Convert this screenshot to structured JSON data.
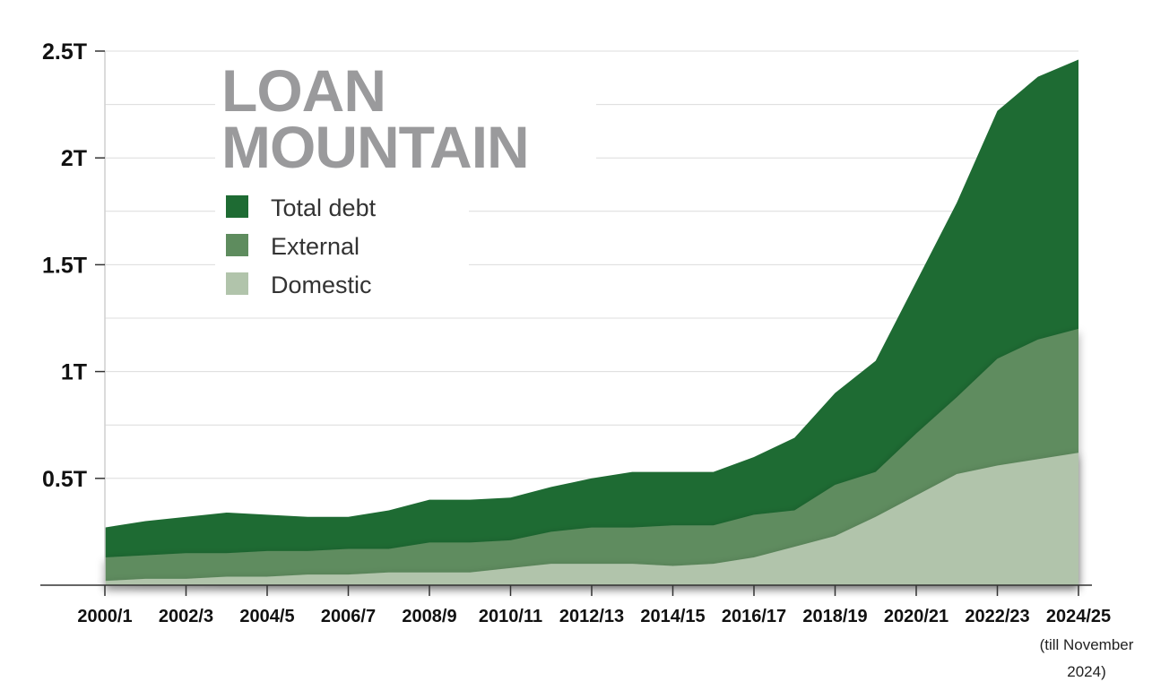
{
  "chart_data": {
    "type": "area",
    "title_lines": [
      "LOAN",
      "MOUNTAIN"
    ],
    "xlabel": "",
    "ylabel": "",
    "ylim": [
      0,
      2.5
    ],
    "y_ticks": [
      {
        "value": 0.5,
        "label": "0.5T"
      },
      {
        "value": 1,
        "label": "1T"
      },
      {
        "value": 1.5,
        "label": "1.5T"
      },
      {
        "value": 2,
        "label": "2T"
      },
      {
        "value": 2.5,
        "label": "2.5T"
      }
    ],
    "x": [
      2000,
      2001,
      2002,
      2003,
      2004,
      2005,
      2006,
      2007,
      2008,
      2009,
      2010,
      2011,
      2012,
      2013,
      2014,
      2015,
      2016,
      2017,
      2018,
      2019,
      2020,
      2021,
      2022,
      2023,
      2024
    ],
    "x_tick_labels": [
      {
        "x": 2000,
        "label": "2000/1"
      },
      {
        "x": 2002,
        "label": "2002/3"
      },
      {
        "x": 2004,
        "label": "2004/5"
      },
      {
        "x": 2006,
        "label": "2006/7"
      },
      {
        "x": 2008,
        "label": "2008/9"
      },
      {
        "x": 2010,
        "label": "2010/11"
      },
      {
        "x": 2012,
        "label": "2012/13"
      },
      {
        "x": 2014,
        "label": "2014/15"
      },
      {
        "x": 2016,
        "label": "2016/17"
      },
      {
        "x": 2018,
        "label": "2018/19"
      },
      {
        "x": 2020,
        "label": "2020/21"
      },
      {
        "x": 2022,
        "label": "2022/23"
      },
      {
        "x": 2024,
        "label": "2024/25"
      }
    ],
    "x_note": [
      "(till November",
      "2024)"
    ],
    "series": [
      {
        "name": "Total debt",
        "color": "#1e6b33",
        "values": [
          0.27,
          0.3,
          0.32,
          0.34,
          0.33,
          0.32,
          0.32,
          0.35,
          0.4,
          0.4,
          0.41,
          0.46,
          0.5,
          0.53,
          0.53,
          0.53,
          0.6,
          0.69,
          0.9,
          1.05,
          1.42,
          1.79,
          2.22,
          2.38,
          2.46
        ]
      },
      {
        "name": "External",
        "color": "#5e8c5e",
        "values": [
          0.13,
          0.14,
          0.15,
          0.15,
          0.16,
          0.16,
          0.17,
          0.17,
          0.2,
          0.2,
          0.21,
          0.25,
          0.27,
          0.27,
          0.28,
          0.28,
          0.33,
          0.35,
          0.47,
          0.53,
          0.71,
          0.88,
          1.06,
          1.15,
          1.2
        ]
      },
      {
        "name": "Domestic",
        "color": "#b1c4ab",
        "values": [
          0.02,
          0.03,
          0.03,
          0.04,
          0.04,
          0.05,
          0.05,
          0.06,
          0.06,
          0.06,
          0.08,
          0.1,
          0.1,
          0.1,
          0.09,
          0.1,
          0.13,
          0.18,
          0.23,
          0.32,
          0.42,
          0.52,
          0.56,
          0.59,
          0.62
        ]
      }
    ],
    "grid": true,
    "legend_position": "top-left"
  }
}
